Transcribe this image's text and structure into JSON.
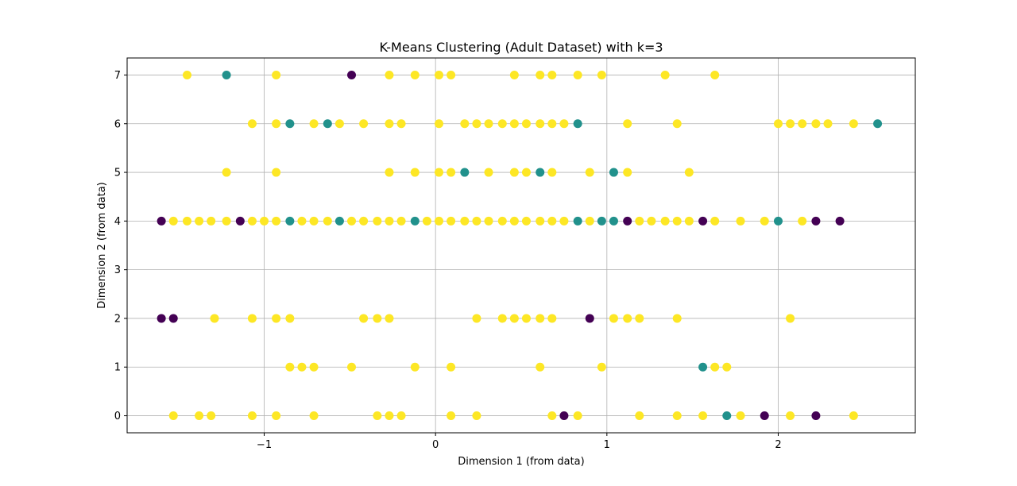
{
  "chart_data": {
    "type": "scatter",
    "title": "K-Means Clustering (Adult Dataset) with k=3",
    "xlabel": "Dimension 1 (from data)",
    "ylabel": "Dimension 2 (from data)",
    "xlim": [
      -1.8,
      2.8
    ],
    "ylim": [
      -0.35,
      7.35
    ],
    "xticks": [
      -1,
      0,
      1,
      2
    ],
    "xtick_labels": [
      "−1",
      "0",
      "1",
      "2"
    ],
    "yticks": [
      0,
      1,
      2,
      3,
      4,
      5,
      6,
      7
    ],
    "ytick_labels": [
      "0",
      "1",
      "2",
      "3",
      "4",
      "5",
      "6",
      "7"
    ],
    "grid": true,
    "colors": {
      "0": "#440154",
      "1": "#21918c",
      "2": "#fde725"
    },
    "points": [
      [
        -1.45,
        7,
        2
      ],
      [
        -1.22,
        7,
        1
      ],
      [
        -0.93,
        7,
        2
      ],
      [
        -0.49,
        7,
        0
      ],
      [
        -0.27,
        7,
        2
      ],
      [
        -0.12,
        7,
        2
      ],
      [
        0.02,
        7,
        2
      ],
      [
        0.09,
        7,
        2
      ],
      [
        0.46,
        7,
        2
      ],
      [
        0.61,
        7,
        2
      ],
      [
        0.68,
        7,
        2
      ],
      [
        0.83,
        7,
        2
      ],
      [
        0.97,
        7,
        2
      ],
      [
        1.34,
        7,
        2
      ],
      [
        1.63,
        7,
        2
      ],
      [
        -1.07,
        6,
        2
      ],
      [
        -0.93,
        6,
        2
      ],
      [
        -0.85,
        6,
        1
      ],
      [
        -0.71,
        6,
        2
      ],
      [
        -0.63,
        6,
        1
      ],
      [
        -0.56,
        6,
        2
      ],
      [
        -0.42,
        6,
        2
      ],
      [
        -0.27,
        6,
        2
      ],
      [
        -0.2,
        6,
        2
      ],
      [
        0.02,
        6,
        2
      ],
      [
        0.17,
        6,
        2
      ],
      [
        0.24,
        6,
        2
      ],
      [
        0.31,
        6,
        2
      ],
      [
        0.39,
        6,
        2
      ],
      [
        0.46,
        6,
        2
      ],
      [
        0.53,
        6,
        2
      ],
      [
        0.61,
        6,
        2
      ],
      [
        0.68,
        6,
        2
      ],
      [
        0.75,
        6,
        2
      ],
      [
        0.83,
        6,
        1
      ],
      [
        1.12,
        6,
        2
      ],
      [
        1.41,
        6,
        2
      ],
      [
        2.0,
        6,
        2
      ],
      [
        2.07,
        6,
        2
      ],
      [
        2.14,
        6,
        2
      ],
      [
        2.22,
        6,
        2
      ],
      [
        2.29,
        6,
        2
      ],
      [
        2.44,
        6,
        2
      ],
      [
        2.58,
        6,
        1
      ],
      [
        -1.22,
        5,
        2
      ],
      [
        -0.93,
        5,
        2
      ],
      [
        -0.27,
        5,
        2
      ],
      [
        -0.12,
        5,
        2
      ],
      [
        0.02,
        5,
        2
      ],
      [
        0.09,
        5,
        2
      ],
      [
        0.17,
        5,
        1
      ],
      [
        0.31,
        5,
        2
      ],
      [
        0.46,
        5,
        2
      ],
      [
        0.53,
        5,
        2
      ],
      [
        0.61,
        5,
        1
      ],
      [
        0.68,
        5,
        2
      ],
      [
        0.9,
        5,
        2
      ],
      [
        1.04,
        5,
        1
      ],
      [
        1.12,
        5,
        2
      ],
      [
        1.48,
        5,
        2
      ],
      [
        -1.6,
        4,
        0
      ],
      [
        -1.53,
        4,
        2
      ],
      [
        -1.45,
        4,
        2
      ],
      [
        -1.38,
        4,
        2
      ],
      [
        -1.31,
        4,
        2
      ],
      [
        -1.22,
        4,
        2
      ],
      [
        -1.14,
        4,
        0
      ],
      [
        -1.07,
        4,
        2
      ],
      [
        -1.0,
        4,
        2
      ],
      [
        -0.93,
        4,
        2
      ],
      [
        -0.85,
        4,
        1
      ],
      [
        -0.78,
        4,
        2
      ],
      [
        -0.71,
        4,
        2
      ],
      [
        -0.63,
        4,
        2
      ],
      [
        -0.56,
        4,
        1
      ],
      [
        -0.49,
        4,
        2
      ],
      [
        -0.42,
        4,
        2
      ],
      [
        -0.34,
        4,
        2
      ],
      [
        -0.27,
        4,
        2
      ],
      [
        -0.2,
        4,
        2
      ],
      [
        -0.12,
        4,
        1
      ],
      [
        -0.05,
        4,
        2
      ],
      [
        0.02,
        4,
        2
      ],
      [
        0.09,
        4,
        2
      ],
      [
        0.17,
        4,
        2
      ],
      [
        0.24,
        4,
        2
      ],
      [
        0.31,
        4,
        2
      ],
      [
        0.39,
        4,
        2
      ],
      [
        0.46,
        4,
        2
      ],
      [
        0.53,
        4,
        2
      ],
      [
        0.61,
        4,
        2
      ],
      [
        0.68,
        4,
        2
      ],
      [
        0.75,
        4,
        2
      ],
      [
        0.83,
        4,
        1
      ],
      [
        0.9,
        4,
        2
      ],
      [
        0.97,
        4,
        1
      ],
      [
        1.04,
        4,
        1
      ],
      [
        1.12,
        4,
        0
      ],
      [
        1.19,
        4,
        2
      ],
      [
        1.26,
        4,
        2
      ],
      [
        1.34,
        4,
        2
      ],
      [
        1.41,
        4,
        2
      ],
      [
        1.48,
        4,
        2
      ],
      [
        1.56,
        4,
        0
      ],
      [
        1.63,
        4,
        2
      ],
      [
        1.78,
        4,
        2
      ],
      [
        1.92,
        4,
        2
      ],
      [
        2.0,
        4,
        1
      ],
      [
        2.14,
        4,
        2
      ],
      [
        2.22,
        4,
        0
      ],
      [
        2.36,
        4,
        0
      ],
      [
        -1.6,
        2,
        0
      ],
      [
        -1.53,
        2,
        0
      ],
      [
        -1.29,
        2,
        2
      ],
      [
        -1.07,
        2,
        2
      ],
      [
        -0.93,
        2,
        2
      ],
      [
        -0.85,
        2,
        2
      ],
      [
        -0.42,
        2,
        2
      ],
      [
        -0.34,
        2,
        2
      ],
      [
        -0.27,
        2,
        2
      ],
      [
        0.24,
        2,
        2
      ],
      [
        0.39,
        2,
        2
      ],
      [
        0.46,
        2,
        2
      ],
      [
        0.53,
        2,
        2
      ],
      [
        0.61,
        2,
        2
      ],
      [
        0.68,
        2,
        2
      ],
      [
        0.9,
        2,
        0
      ],
      [
        1.04,
        2,
        2
      ],
      [
        1.12,
        2,
        2
      ],
      [
        1.19,
        2,
        2
      ],
      [
        1.41,
        2,
        2
      ],
      [
        2.07,
        2,
        2
      ],
      [
        -0.85,
        1,
        2
      ],
      [
        -0.78,
        1,
        2
      ],
      [
        -0.71,
        1,
        2
      ],
      [
        -0.49,
        1,
        2
      ],
      [
        -0.12,
        1,
        2
      ],
      [
        0.09,
        1,
        2
      ],
      [
        0.61,
        1,
        2
      ],
      [
        0.97,
        1,
        2
      ],
      [
        1.56,
        1,
        1
      ],
      [
        1.63,
        1,
        2
      ],
      [
        1.7,
        1,
        2
      ],
      [
        -1.53,
        0,
        2
      ],
      [
        -1.38,
        0,
        2
      ],
      [
        -1.31,
        0,
        2
      ],
      [
        -1.07,
        0,
        2
      ],
      [
        -0.93,
        0,
        2
      ],
      [
        -0.71,
        0,
        2
      ],
      [
        -0.34,
        0,
        2
      ],
      [
        -0.27,
        0,
        2
      ],
      [
        -0.2,
        0,
        2
      ],
      [
        0.09,
        0,
        2
      ],
      [
        0.24,
        0,
        2
      ],
      [
        0.68,
        0,
        2
      ],
      [
        0.75,
        0,
        0
      ],
      [
        0.83,
        0,
        2
      ],
      [
        1.19,
        0,
        2
      ],
      [
        1.41,
        0,
        2
      ],
      [
        1.56,
        0,
        2
      ],
      [
        1.7,
        0,
        1
      ],
      [
        1.78,
        0,
        2
      ],
      [
        1.92,
        0,
        0
      ],
      [
        2.07,
        0,
        2
      ],
      [
        2.22,
        0,
        0
      ],
      [
        2.44,
        0,
        2
      ]
    ]
  }
}
